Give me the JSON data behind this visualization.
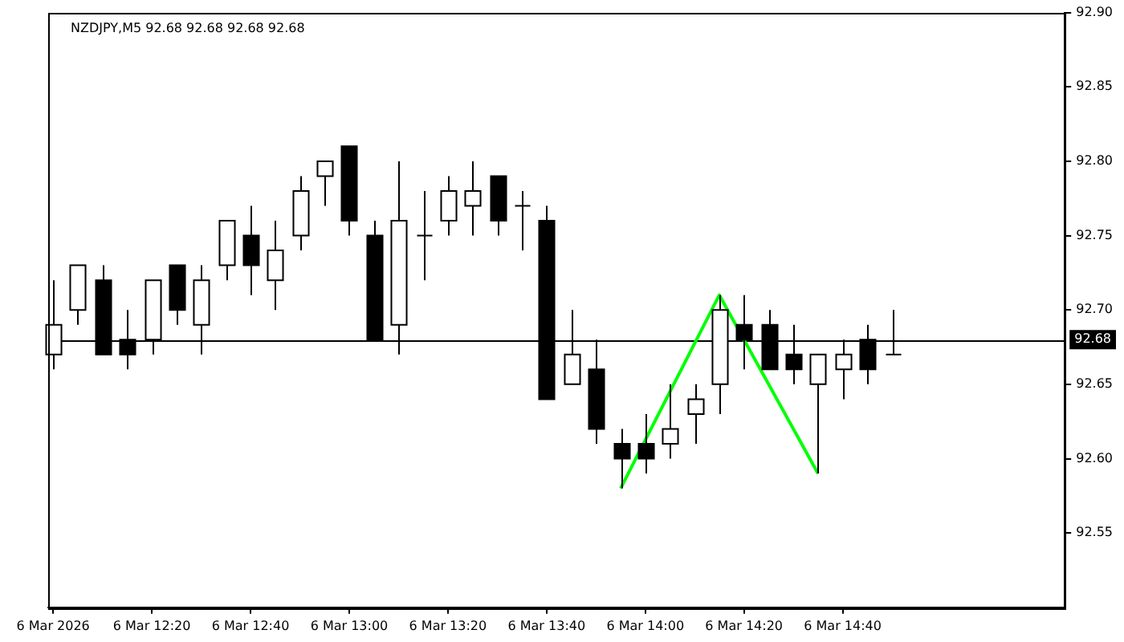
{
  "chart_data": {
    "type": "candlestick",
    "title": "NZDJPY,M5 92.68 92.68 92.68 92.68",
    "x": [
      "2026-03-06T12:00",
      "2026-03-06T12:05",
      "2026-03-06T12:10",
      "2026-03-06T12:15",
      "2026-03-06T12:20",
      "2026-03-06T12:25",
      "2026-03-06T12:30",
      "2026-03-06T12:35",
      "2026-03-06T12:40",
      "2026-03-06T12:45",
      "2026-03-06T12:50",
      "2026-03-06T12:55",
      "2026-03-06T13:00",
      "2026-03-06T13:05",
      "2026-03-06T13:10",
      "2026-03-06T13:15",
      "2026-03-06T13:20",
      "2026-03-06T13:25",
      "2026-03-06T13:30",
      "2026-03-06T13:35",
      "2026-03-06T13:40",
      "2026-03-06T13:45",
      "2026-03-06T13:50",
      "2026-03-06T13:55",
      "2026-03-06T14:00",
      "2026-03-06T14:05",
      "2026-03-06T14:10",
      "2026-03-06T14:15",
      "2026-03-06T14:20",
      "2026-03-06T14:25",
      "2026-03-06T14:30",
      "2026-03-06T14:35",
      "2026-03-06T14:40",
      "2026-03-06T14:45",
      "2026-03-06T14:50"
    ],
    "ohlc": [
      [
        92.67,
        92.72,
        92.66,
        92.69
      ],
      [
        92.7,
        92.73,
        92.69,
        92.73
      ],
      [
        92.72,
        92.73,
        92.67,
        92.67
      ],
      [
        92.68,
        92.7,
        92.66,
        92.67
      ],
      [
        92.68,
        92.72,
        92.67,
        92.72
      ],
      [
        92.73,
        92.73,
        92.69,
        92.7
      ],
      [
        92.69,
        92.73,
        92.67,
        92.72
      ],
      [
        92.73,
        92.76,
        92.72,
        92.76
      ],
      [
        92.75,
        92.77,
        92.71,
        92.73
      ],
      [
        92.72,
        92.76,
        92.7,
        92.74
      ],
      [
        92.75,
        92.79,
        92.74,
        92.78
      ],
      [
        92.79,
        92.8,
        92.77,
        92.8
      ],
      [
        92.81,
        92.81,
        92.75,
        92.76
      ],
      [
        92.75,
        92.76,
        92.68,
        92.68
      ],
      [
        92.69,
        92.8,
        92.67,
        92.76
      ],
      [
        92.75,
        92.78,
        92.72,
        92.75
      ],
      [
        92.76,
        92.79,
        92.75,
        92.78
      ],
      [
        92.77,
        92.8,
        92.75,
        92.78
      ],
      [
        92.79,
        92.79,
        92.75,
        92.76
      ],
      [
        92.77,
        92.78,
        92.74,
        92.77
      ],
      [
        92.76,
        92.77,
        92.64,
        92.64
      ],
      [
        92.65,
        92.7,
        92.65,
        92.67
      ],
      [
        92.66,
        92.68,
        92.61,
        92.62
      ],
      [
        92.61,
        92.62,
        92.58,
        92.6
      ],
      [
        92.61,
        92.63,
        92.59,
        92.6
      ],
      [
        92.61,
        92.65,
        92.6,
        92.62
      ],
      [
        92.63,
        92.65,
        92.61,
        92.64
      ],
      [
        92.65,
        92.71,
        92.63,
        92.7
      ],
      [
        92.69,
        92.71,
        92.66,
        92.68
      ],
      [
        92.69,
        92.7,
        92.66,
        92.66
      ],
      [
        92.67,
        92.69,
        92.65,
        92.66
      ],
      [
        92.65,
        92.67,
        92.59,
        92.67
      ],
      [
        92.66,
        92.68,
        92.64,
        92.67
      ],
      [
        92.68,
        92.69,
        92.65,
        92.66
      ],
      [
        92.67,
        92.7,
        92.67,
        92.67
      ]
    ],
    "series": [
      {
        "type": "line",
        "color": "#00ff00",
        "x": [
          "2026-03-06T13:55",
          "2026-03-06T14:15",
          "2026-03-06T14:35"
        ],
        "values": [
          92.58,
          92.71,
          92.59
        ]
      }
    ],
    "xlim": [
      "2026-03-06T11:59",
      "2026-03-06T15:25"
    ],
    "xticks": [
      {
        "value": "2026-03-06T12:00",
        "label": "6 Mar 2026"
      },
      {
        "value": "2026-03-06T12:20",
        "label": "6 Mar 12:20"
      },
      {
        "value": "2026-03-06T12:40",
        "label": "6 Mar 12:40"
      },
      {
        "value": "2026-03-06T13:00",
        "label": "6 Mar 13:00"
      },
      {
        "value": "2026-03-06T13:20",
        "label": "6 Mar 13:20"
      },
      {
        "value": "2026-03-06T13:40",
        "label": "6 Mar 13:40"
      },
      {
        "value": "2026-03-06T14:00",
        "label": "6 Mar 14:00"
      },
      {
        "value": "2026-03-06T14:20",
        "label": "6 Mar 14:20"
      },
      {
        "value": "2026-03-06T14:40",
        "label": "6 Mar 14:40"
      }
    ],
    "ylim": [
      92.5,
      92.9
    ],
    "yticks": [
      {
        "value": 92.55,
        "label": "92.55"
      },
      {
        "value": 92.6,
        "label": "92.60"
      },
      {
        "value": 92.65,
        "label": "92.65"
      },
      {
        "value": 92.7,
        "label": "92.70"
      },
      {
        "value": 92.75,
        "label": "92.75"
      },
      {
        "value": 92.8,
        "label": "92.80"
      },
      {
        "value": 92.85,
        "label": "92.85"
      },
      {
        "value": 92.9,
        "label": "92.90"
      }
    ],
    "ref_lines": [
      {
        "axis": "y",
        "value": 92.68,
        "label": "92.68",
        "color": "#000000"
      }
    ],
    "grid": false,
    "legend": false,
    "marker": "none",
    "line_style": "solid"
  }
}
